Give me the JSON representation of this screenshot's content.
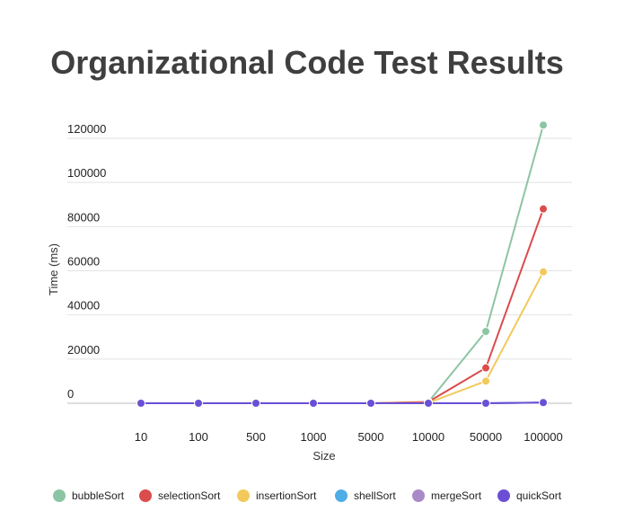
{
  "chart_data": {
    "type": "line",
    "title": "Organizational Code Test Results",
    "xlabel": "Size",
    "ylabel": "Time (ms)",
    "categories": [
      "10",
      "100",
      "500",
      "1000",
      "5000",
      "10000",
      "50000",
      "100000"
    ],
    "ylim": [
      0,
      120000
    ],
    "yticks": [
      0,
      20000,
      40000,
      60000,
      80000,
      100000,
      120000
    ],
    "grid": true,
    "legend": "bottom",
    "series": [
      {
        "name": "bubbleSort",
        "color": "#8cc5a3",
        "values": [
          0,
          0,
          0,
          0,
          0,
          500,
          32500,
          126000
        ]
      },
      {
        "name": "selectionSort",
        "color": "#db4c4c",
        "values": [
          0,
          0,
          0,
          0,
          0,
          600,
          16000,
          88000
        ]
      },
      {
        "name": "insertionSort",
        "color": "#f2c95b",
        "values": [
          0,
          0,
          0,
          0,
          0,
          200,
          10000,
          59500
        ]
      },
      {
        "name": "shellSort",
        "color": "#4fade6",
        "values": [
          0,
          0,
          0,
          0,
          0,
          0,
          0,
          300
        ]
      },
      {
        "name": "mergeSort",
        "color": "#a98ac7",
        "values": [
          0,
          0,
          0,
          0,
          0,
          0,
          0,
          300
        ]
      },
      {
        "name": "quickSort",
        "color": "#6a4fd6",
        "values": [
          0,
          0,
          0,
          0,
          0,
          0,
          0,
          300
        ]
      }
    ]
  }
}
